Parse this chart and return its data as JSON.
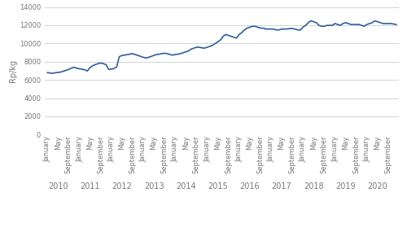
{
  "title": "",
  "ylabel": "Rp/kg",
  "ylim": [
    0,
    14000
  ],
  "yticks": [
    0,
    2000,
    4000,
    6000,
    8000,
    10000,
    12000,
    14000
  ],
  "line_color": "#2E5E9E",
  "line_width": 1.2,
  "background_color": "#ffffff",
  "grid_color": "#cccccc",
  "values": [
    6800,
    6750,
    6720,
    6780,
    6820,
    6860,
    6950,
    7050,
    7150,
    7300,
    7380,
    7280,
    7220,
    7180,
    7100,
    6980,
    7350,
    7550,
    7680,
    7780,
    7850,
    7780,
    7680,
    7150,
    7180,
    7250,
    7420,
    8550,
    8680,
    8720,
    8780,
    8820,
    8880,
    8780,
    8680,
    8580,
    8480,
    8400,
    8480,
    8580,
    8680,
    8780,
    8820,
    8880,
    8920,
    8880,
    8780,
    8720,
    8780,
    8820,
    8880,
    8980,
    9080,
    9180,
    9380,
    9480,
    9580,
    9580,
    9520,
    9480,
    9580,
    9680,
    9780,
    9980,
    10180,
    10380,
    10780,
    10980,
    10880,
    10780,
    10680,
    10580,
    10980,
    11180,
    11480,
    11680,
    11780,
    11880,
    11880,
    11780,
    11680,
    11680,
    11580,
    11580,
    11580,
    11580,
    11480,
    11480,
    11580,
    11580,
    11580,
    11630,
    11630,
    11580,
    11480,
    11480,
    11780,
    11980,
    12280,
    12480,
    12380,
    12280,
    11980,
    11880,
    11880,
    11980,
    11980,
    11980,
    12180,
    12080,
    11980,
    12180,
    12280,
    12180,
    12080,
    12080,
    12080,
    12080,
    11980,
    11880,
    12080,
    12180,
    12280,
    12480,
    12380,
    12280,
    12180,
    12180,
    12180,
    12180,
    12130,
    12080
  ],
  "year_labels": [
    "2010",
    "2011",
    "2012",
    "2013",
    "2014",
    "2015",
    "2016",
    "2017",
    "2018",
    "2019",
    "2020"
  ],
  "month_offsets": [
    0,
    4,
    8
  ],
  "month_names": [
    "January",
    "May",
    "September"
  ],
  "tick_label_color": "#777777",
  "tick_label_fontsize": 6.0,
  "year_label_fontsize": 7.0,
  "ylabel_fontsize": 7.0,
  "ylabel_color": "#777777"
}
